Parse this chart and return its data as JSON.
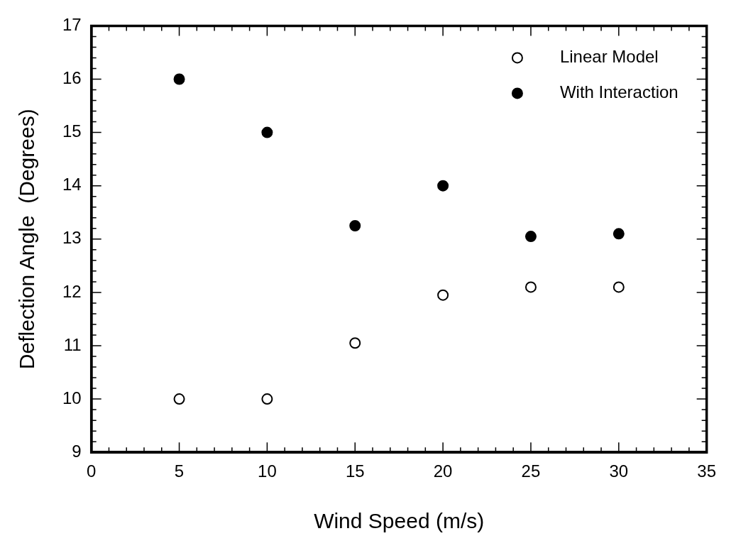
{
  "chart_data": {
    "type": "scatter",
    "xlabel": "Wind Speed (m/s)",
    "ylabel": "Deflection Angle  (Degrees)",
    "x": [
      5,
      10,
      15,
      20,
      25,
      30
    ],
    "series": [
      {
        "name": "Linear Model",
        "color": "#000000",
        "marker": "circle_open",
        "values": [
          10,
          10,
          11.05,
          11.95,
          12.1,
          12.1
        ]
      },
      {
        "name": "With Interaction",
        "color": "#000000",
        "marker": "circle",
        "values": [
          16,
          15,
          13.25,
          14,
          13.05,
          13.1
        ]
      }
    ],
    "xlim": [
      0,
      35
    ],
    "ylim": [
      9,
      17
    ],
    "xticks": [
      0,
      5,
      10,
      15,
      20,
      25,
      30,
      35
    ],
    "yticks": [
      9,
      10,
      11,
      12,
      13,
      14,
      15,
      16,
      17
    ],
    "grid": false,
    "legend": "top right"
  }
}
